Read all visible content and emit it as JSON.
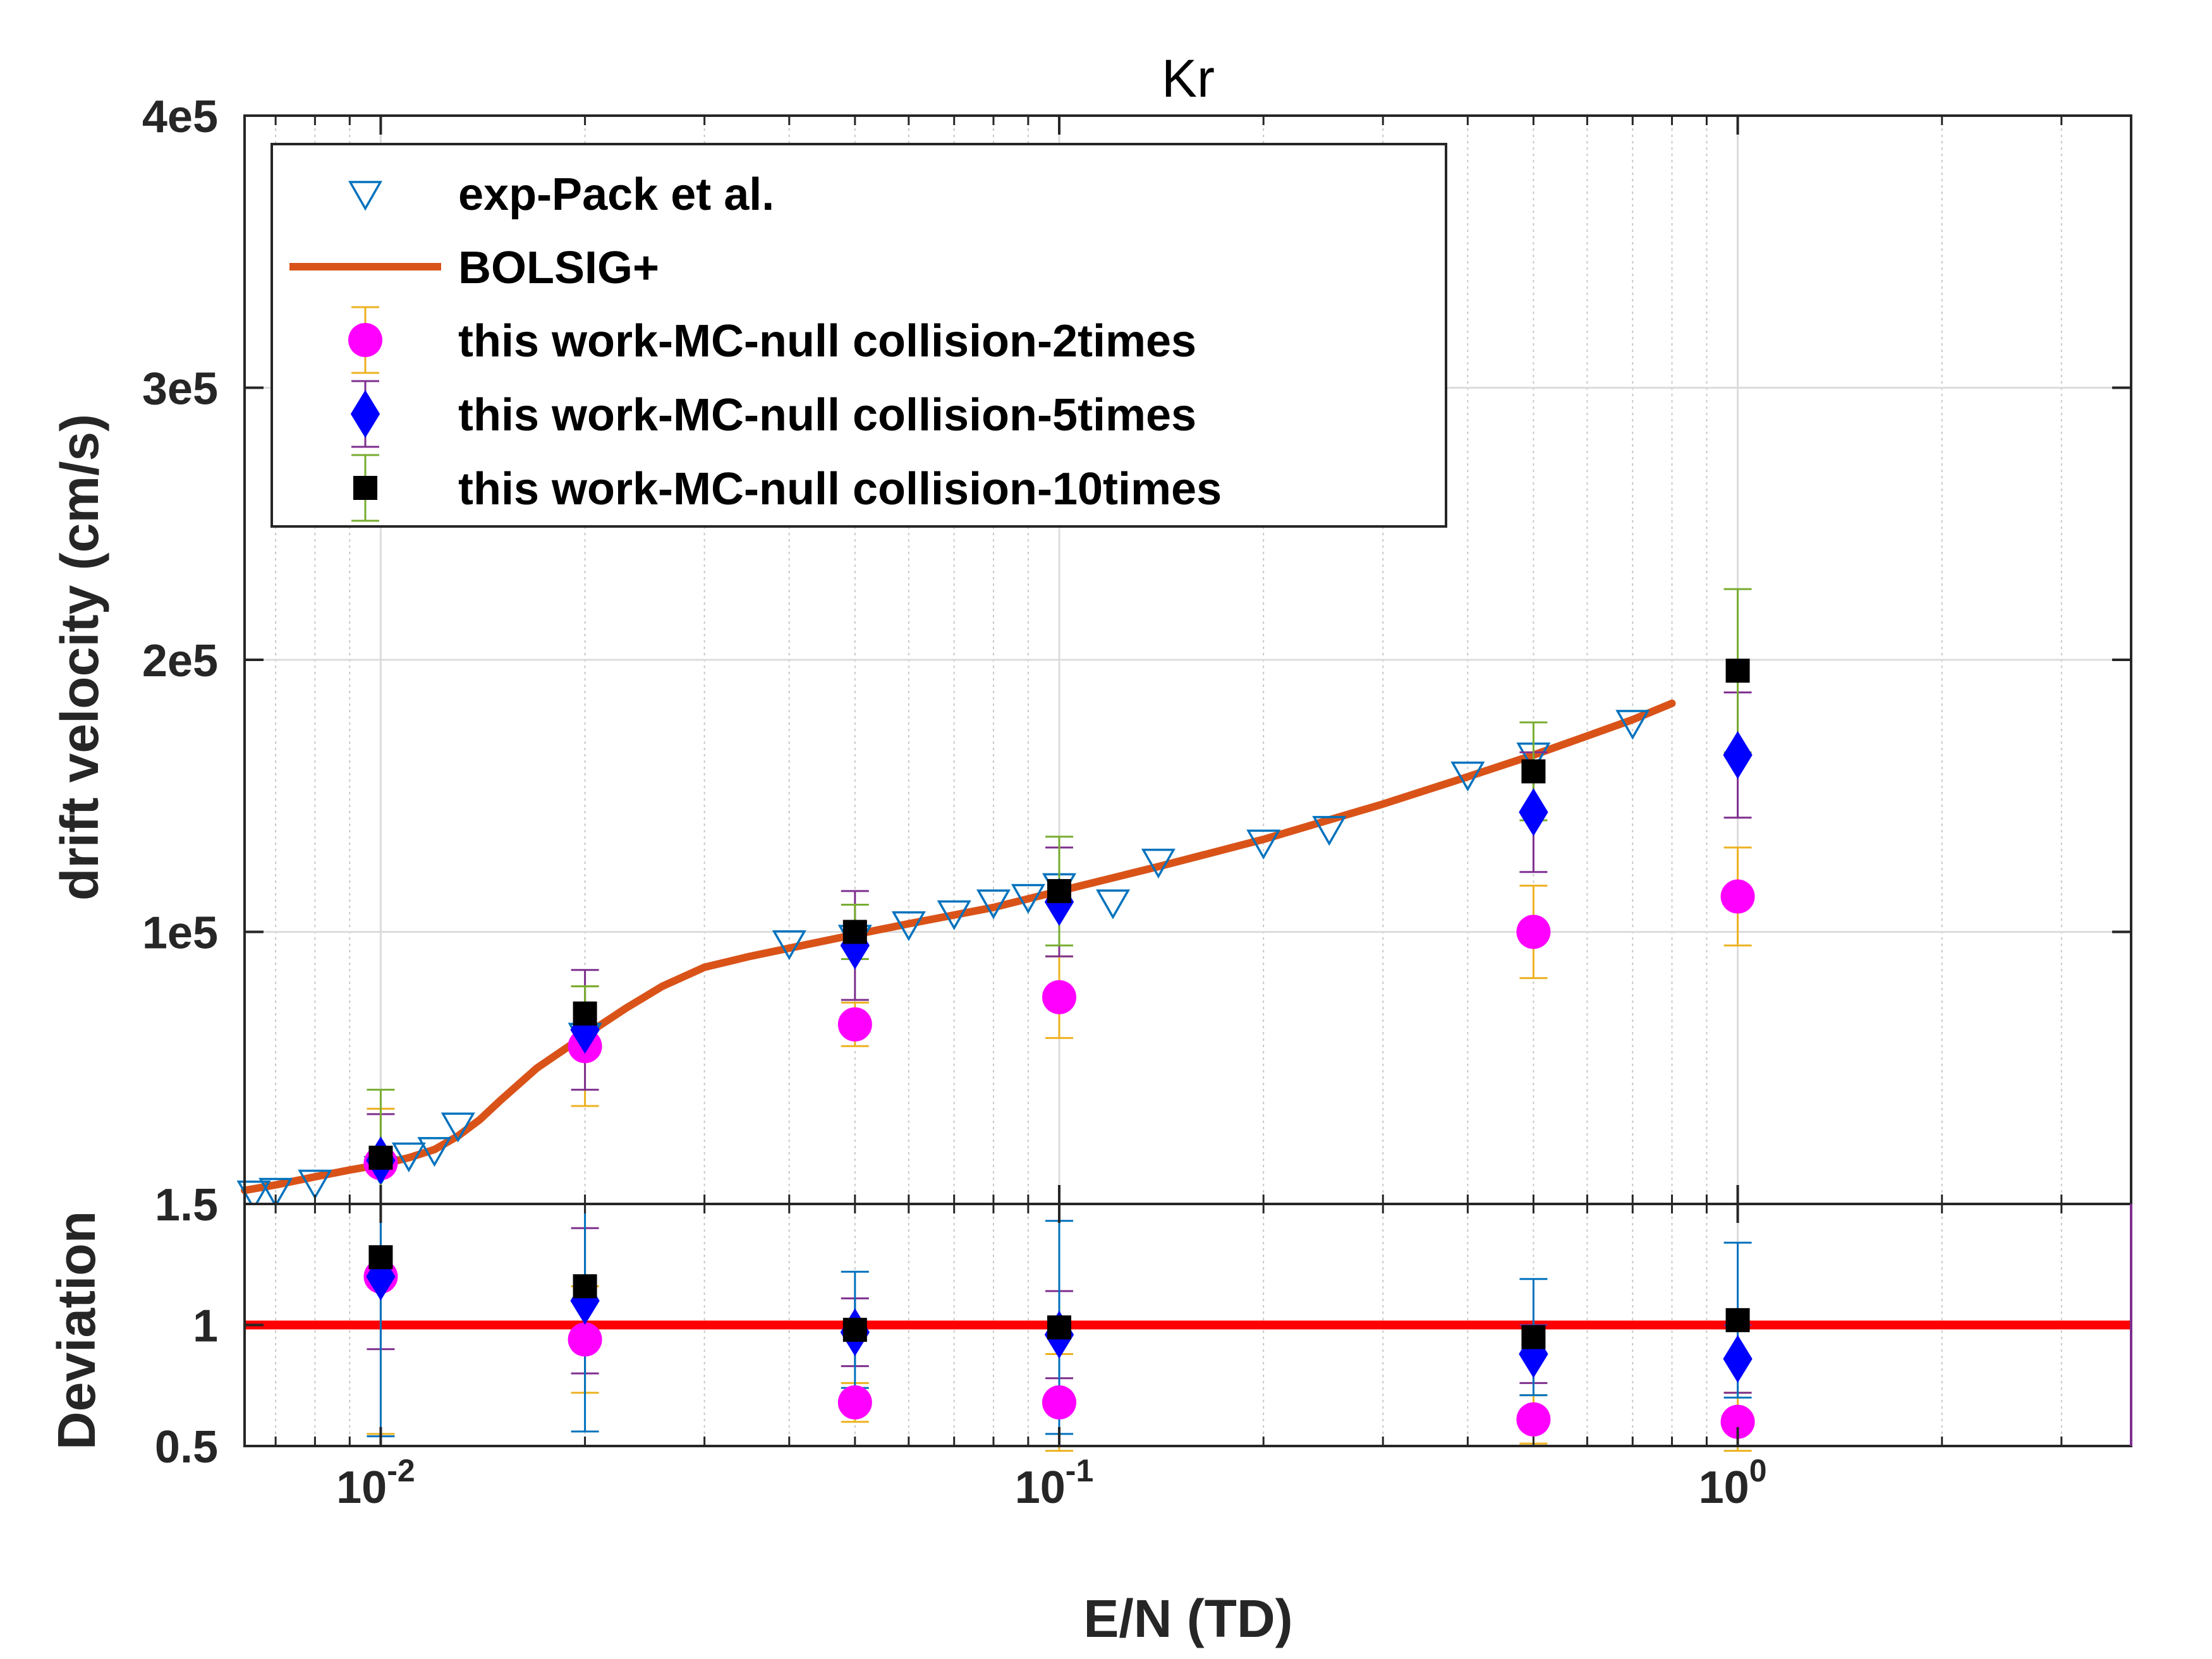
{
  "chart_data": [
    {
      "type": "scatter",
      "title": "Kr",
      "xlabel": "E/N (TD)",
      "ylabel": "drift velocity (cm/s)",
      "xscale": "log",
      "xlim": [
        0.0063,
        3.8
      ],
      "ylim": [
        0,
        400000
      ],
      "ytick_labels": [
        "1.5",
        "1e5",
        "2e5",
        "3e5",
        "4e5"
      ],
      "xtick_labels": [
        {
          "base": "10",
          "exp": "-2"
        },
        {
          "base": "10",
          "exp": "-1"
        },
        {
          "base": "10",
          "exp": "0"
        }
      ],
      "grid": true,
      "legend_position": "top-left",
      "series": [
        {
          "name": "exp-Pack et al.",
          "marker": "triangle-down-open",
          "color": "#0072BD",
          "x": [
            0.0065,
            0.007,
            0.008,
            0.01,
            0.011,
            0.012,
            0.013,
            0.02,
            0.04,
            0.05,
            0.06,
            0.07,
            0.08,
            0.09,
            0.1,
            0.12,
            0.14,
            0.2,
            0.25,
            0.4,
            0.5,
            0.7
          ],
          "y": [
            4000,
            5000,
            8000,
            13000,
            18000,
            20000,
            29000,
            62000,
            96000,
            98000,
            103000,
            107000,
            111000,
            113000,
            117000,
            111000,
            126000,
            133000,
            138000,
            158000,
            165000,
            177000
          ]
        },
        {
          "name": "BOLSIG+",
          "line": "solid",
          "color": "#D95319",
          "x": [
            0.0063,
            0.007,
            0.008,
            0.009,
            0.01,
            0.011,
            0.012,
            0.013,
            0.014,
            0.015,
            0.017,
            0.02,
            0.023,
            0.026,
            0.03,
            0.035,
            0.04,
            0.05,
            0.06,
            0.08,
            0.1,
            0.14,
            0.2,
            0.3,
            0.4,
            0.5,
            0.6,
            0.7,
            0.8
          ],
          "y": [
            5000,
            7000,
            10000,
            12500,
            14500,
            17000,
            20000,
            25000,
            31000,
            38000,
            50000,
            62000,
            72000,
            80000,
            87000,
            91000,
            94000,
            99000,
            103000,
            109000,
            115000,
            124000,
            134000,
            147000,
            157000,
            165000,
            172000,
            178000,
            184000
          ]
        },
        {
          "name": "this work-MC-null collision-2times",
          "marker": "circle-filled",
          "color": "#FF00FF",
          "error_color": "#EDB120",
          "x": [
            0.01,
            0.02,
            0.05,
            0.1,
            0.5,
            1.0
          ],
          "y": [
            15000,
            58000,
            66000,
            76000,
            100000,
            113000
          ],
          "err": [
            20000,
            22000,
            8000,
            15000,
            17000,
            18000
          ]
        },
        {
          "name": "this work-MC-null collision-5times",
          "marker": "diamond-filled",
          "color": "#0000FF",
          "error_color": "#7E2F8E",
          "x": [
            0.01,
            0.02,
            0.05,
            0.1,
            0.5,
            1.0
          ],
          "y": [
            16000,
            64000,
            95000,
            111000,
            144000,
            165000
          ],
          "err": [
            17000,
            22000,
            20000,
            20000,
            22000,
            23000
          ]
        },
        {
          "name": "this work-MC-null collision-10times",
          "marker": "square-filled",
          "color": "#000000",
          "error_color": "#77AC30",
          "x": [
            0.01,
            0.02,
            0.05,
            0.1,
            0.5,
            1.0
          ],
          "y": [
            17000,
            70000,
            100000,
            115000,
            159000,
            196000
          ],
          "err": [
            25000,
            10000,
            10000,
            20000,
            18000,
            30000
          ]
        }
      ]
    },
    {
      "type": "scatter",
      "xscale": "log",
      "ylabel": "Deviation",
      "xlim": [
        0.0063,
        3.8
      ],
      "ylim": [
        0.5,
        1.5
      ],
      "ytick_labels": [
        "0.5",
        "1",
        "1.5"
      ],
      "grid": true,
      "reference_line": {
        "y": 1,
        "color": "#FF0000"
      },
      "series": [
        {
          "name": "this work-MC-null collision-2times",
          "marker": "circle-filled",
          "color": "#FF00FF",
          "error_color": "#EDB120",
          "x": [
            0.01,
            0.02,
            0.05,
            0.1,
            0.5,
            1.0
          ],
          "y": [
            1.2,
            0.94,
            0.68,
            0.68,
            0.61,
            0.6
          ],
          "err": [
            0.65,
            0.22,
            0.08,
            0.2,
            0.1,
            0.12
          ]
        },
        {
          "name": "this work-MC-null collision-5times",
          "marker": "diamond-filled",
          "color": "#0000FF",
          "error_color": "#7E2F8E",
          "x": [
            0.01,
            0.02,
            0.05,
            0.1,
            0.5,
            1.0
          ],
          "y": [
            1.2,
            1.1,
            0.97,
            0.96,
            0.88,
            0.86
          ],
          "err": [
            0.3,
            0.3,
            0.14,
            0.18,
            0.12,
            0.14
          ]
        },
        {
          "name": "this work-MC-null collision-10times",
          "marker": "square-filled",
          "color": "#000000",
          "error_color": "#0072BD",
          "x": [
            0.01,
            0.02,
            0.05,
            0.1,
            0.5,
            1.0
          ],
          "y": [
            1.28,
            1.16,
            0.98,
            0.99,
            0.95,
            1.02
          ],
          "err": [
            0.74,
            0.6,
            0.24,
            0.44,
            0.24,
            0.32
          ]
        }
      ]
    }
  ]
}
